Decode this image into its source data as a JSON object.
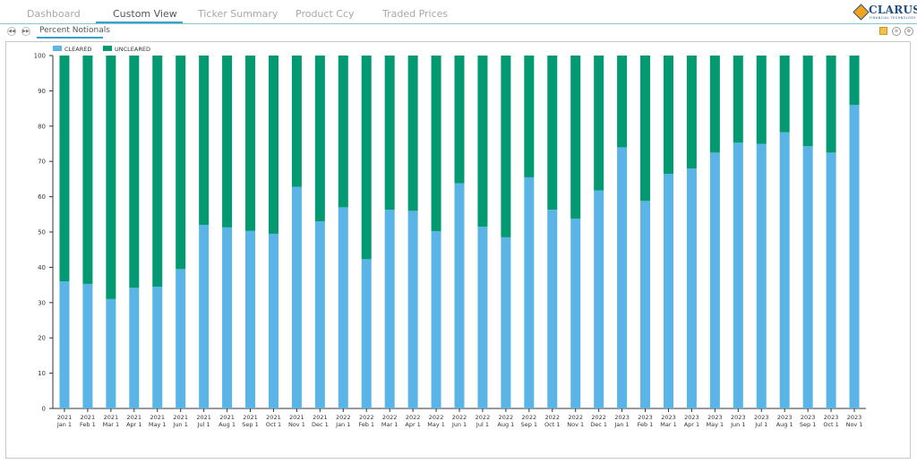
{
  "nav": {
    "tabs": [
      {
        "label": "Dashboard"
      },
      {
        "label": "Custom View"
      },
      {
        "label": "Ticker Summary"
      },
      {
        "label": "Product Ccy"
      },
      {
        "label": "Traded Prices"
      }
    ],
    "active_tab": "Custom View"
  },
  "logo": {
    "name": "CLARUS",
    "tagline": "FINANCIAL TECHNOLOGY"
  },
  "subnav": {
    "tab_label": "Percent Notionals"
  },
  "colors": {
    "cleared": "#5ab4e6",
    "uncleared": "#039971",
    "accent": "#3aa0c8"
  },
  "chart_data": {
    "type": "bar",
    "stacked": true,
    "title": "",
    "xlabel": "",
    "ylabel": "",
    "ylim": [
      0,
      100
    ],
    "yticks": [
      0,
      10,
      20,
      30,
      40,
      50,
      60,
      70,
      80,
      90,
      100
    ],
    "legend_position": "top-left",
    "grid": false,
    "categories": [
      [
        "2021",
        "Jan 1"
      ],
      [
        "2021",
        "Feb 1"
      ],
      [
        "2021",
        "Mar 1"
      ],
      [
        "2021",
        "Apr 1"
      ],
      [
        "2021",
        "May 1"
      ],
      [
        "2021",
        "Jun 1"
      ],
      [
        "2021",
        "Jul 1"
      ],
      [
        "2021",
        "Aug 1"
      ],
      [
        "2021",
        "Sep 1"
      ],
      [
        "2021",
        "Oct 1"
      ],
      [
        "2021",
        "Nov 1"
      ],
      [
        "2021",
        "Dec 1"
      ],
      [
        "2022",
        "Jan 1"
      ],
      [
        "2022",
        "Feb 1"
      ],
      [
        "2022",
        "Mar 1"
      ],
      [
        "2022",
        "Apr 1"
      ],
      [
        "2022",
        "May 1"
      ],
      [
        "2022",
        "Jun 1"
      ],
      [
        "2022",
        "Jul 1"
      ],
      [
        "2022",
        "Aug 1"
      ],
      [
        "2022",
        "Sep 1"
      ],
      [
        "2022",
        "Oct 1"
      ],
      [
        "2022",
        "Nov 1"
      ],
      [
        "2022",
        "Dec 1"
      ],
      [
        "2023",
        "Jan 1"
      ],
      [
        "2023",
        "Feb 1"
      ],
      [
        "2023",
        "Mar 1"
      ],
      [
        "2023",
        "Apr 1"
      ],
      [
        "2023",
        "May 1"
      ],
      [
        "2023",
        "Jun 1"
      ],
      [
        "2023",
        "Jul 1"
      ],
      [
        "2023",
        "Aug 1"
      ],
      [
        "2023",
        "Sep 1"
      ],
      [
        "2023",
        "Oct 1"
      ],
      [
        "2023",
        "Nov 1"
      ]
    ],
    "series": [
      {
        "name": "CLEARED",
        "values": [
          36,
          35.3,
          31,
          34.2,
          34.5,
          39.5,
          52,
          51.3,
          50.3,
          49.5,
          62.8,
          53,
          57,
          42.3,
          56.3,
          56,
          50.2,
          63.8,
          51.5,
          48.5,
          65.5,
          56.3,
          53.8,
          61.8,
          74,
          58.8,
          66.5,
          68,
          72.5,
          75.3,
          75,
          78.3,
          74.3,
          72.5,
          86
        ]
      },
      {
        "name": "UNCLEARED",
        "values": [
          64,
          64.7,
          69,
          65.8,
          65.5,
          60.5,
          48,
          48.7,
          49.7,
          50.5,
          37.2,
          47,
          43,
          57.7,
          43.7,
          44,
          49.8,
          36.2,
          48.5,
          51.5,
          34.5,
          43.7,
          46.2,
          38.2,
          26,
          41.2,
          33.5,
          32,
          27.5,
          24.7,
          25,
          21.7,
          25.7,
          27.5,
          14
        ]
      }
    ]
  }
}
